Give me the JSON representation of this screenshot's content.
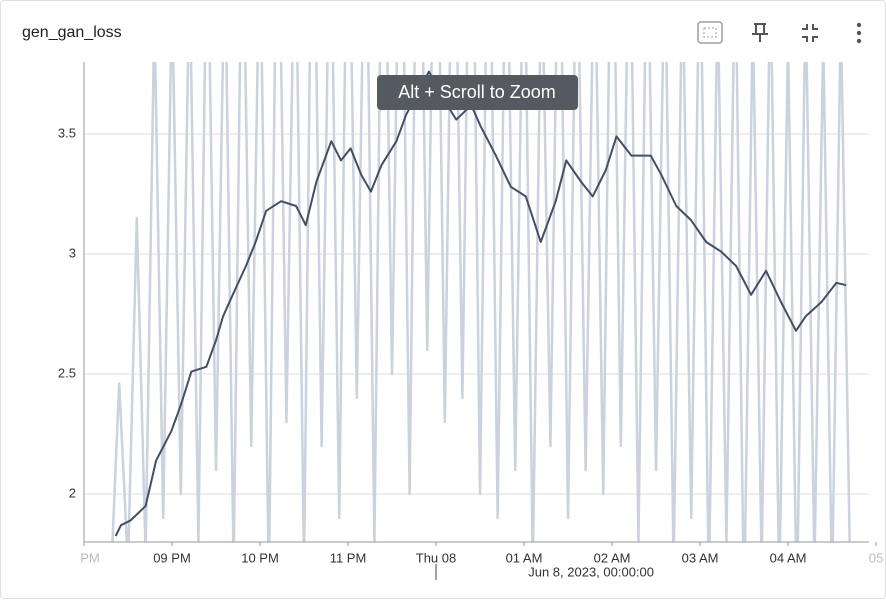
{
  "chart_data": {
    "type": "line",
    "title": "gen_gan_loss",
    "tooltip": "Alt + Scroll to Zoom",
    "x_annotation": {
      "value": 24,
      "label": "Jun 8, 2023, 00:00:00"
    },
    "xlim": [
      20,
      28.92
    ],
    "ylim": [
      1.8,
      3.8
    ],
    "xticks": [
      {
        "value": 20,
        "label": "PM"
      },
      {
        "value": 21,
        "label": "09 PM"
      },
      {
        "value": 22,
        "label": "10 PM"
      },
      {
        "value": 23,
        "label": "11 PM"
      },
      {
        "value": 24,
        "label": "Thu 08"
      },
      {
        "value": 25,
        "label": "01 AM"
      },
      {
        "value": 26,
        "label": "02 AM"
      },
      {
        "value": 27,
        "label": "03 AM"
      },
      {
        "value": 28,
        "label": "04 AM"
      },
      {
        "value": 29,
        "label": "05"
      }
    ],
    "yticks": [
      2,
      2.5,
      3,
      3.5
    ],
    "grid": true,
    "series": [
      {
        "color": "#cbd2dd",
        "x": [
          20.3,
          20.4,
          20.5,
          20.6,
          20.7,
          20.8,
          20.9,
          21.0,
          21.1,
          21.2,
          21.3,
          21.4,
          21.5,
          21.6,
          21.7,
          21.8,
          21.9,
          22.0,
          22.1,
          22.2,
          22.3,
          22.4,
          22.5,
          22.6,
          22.7,
          22.8,
          22.9,
          23.0,
          23.1,
          23.2,
          23.3,
          23.4,
          23.5,
          23.6,
          23.7,
          23.8,
          23.9,
          24.0,
          24.1,
          24.2,
          24.3,
          24.4,
          24.5,
          24.6,
          24.7,
          24.8,
          24.9,
          25.0,
          25.1,
          25.2,
          25.3,
          25.4,
          25.5,
          25.6,
          25.7,
          25.8,
          25.9,
          26.0,
          26.1,
          26.2,
          26.3,
          26.4,
          26.5,
          26.6,
          26.7,
          26.8,
          26.9,
          27.0,
          27.1,
          27.2,
          27.3,
          27.4,
          27.5,
          27.6,
          27.7,
          27.8,
          27.9,
          28.0,
          28.1,
          28.2,
          28.3,
          28.4,
          28.5,
          28.6,
          28.7
        ],
        "values": [
          1.6,
          2.46,
          1.7,
          3.15,
          1.75,
          4.0,
          1.9,
          4.1,
          2.0,
          4.2,
          1.8,
          4.5,
          2.1,
          4.3,
          1.7,
          4.6,
          2.2,
          4.4,
          1.6,
          4.8,
          2.3,
          4.5,
          1.7,
          4.9,
          2.2,
          4.6,
          1.9,
          4.8,
          2.4,
          4.7,
          1.8,
          5.0,
          2.5,
          4.9,
          2.0,
          5.2,
          2.6,
          5.0,
          2.3,
          4.9,
          2.4,
          5.1,
          2.0,
          4.8,
          1.9,
          4.6,
          2.1,
          4.5,
          1.7,
          4.3,
          2.2,
          4.7,
          1.9,
          4.5,
          2.1,
          4.4,
          2.0,
          4.8,
          2.2,
          4.6,
          1.8,
          4.5,
          2.1,
          4.3,
          1.7,
          4.2,
          1.9,
          4.4,
          1.6,
          4.1,
          1.8,
          4.3,
          1.5,
          4.0,
          1.7,
          4.2,
          1.6,
          3.9,
          1.5,
          4.1,
          1.7,
          3.9,
          1.6,
          4.0,
          1.8
        ]
      },
      {
        "color": "#425066",
        "x": [
          20.36,
          20.42,
          20.53,
          20.7,
          20.82,
          20.99,
          21.1,
          21.22,
          21.39,
          21.5,
          21.58,
          21.69,
          21.84,
          21.95,
          22.07,
          22.24,
          22.41,
          22.52,
          22.64,
          22.81,
          22.92,
          23.03,
          23.15,
          23.26,
          23.38,
          23.55,
          23.66,
          23.83,
          23.92,
          24.06,
          24.23,
          24.4,
          24.51,
          24.68,
          24.85,
          25.02,
          25.19,
          25.36,
          25.48,
          25.65,
          25.78,
          25.93,
          26.05,
          26.22,
          26.44,
          26.56,
          26.73,
          26.9,
          27.07,
          27.24,
          27.41,
          27.58,
          27.75,
          27.92,
          28.09,
          28.2,
          28.38,
          28.55,
          28.66
        ],
        "values": [
          1.825,
          1.87,
          1.89,
          1.95,
          2.14,
          2.26,
          2.37,
          2.51,
          2.53,
          2.64,
          2.74,
          2.83,
          2.95,
          3.05,
          3.18,
          3.22,
          3.2,
          3.12,
          3.3,
          3.47,
          3.39,
          3.44,
          3.33,
          3.26,
          3.37,
          3.47,
          3.58,
          3.7,
          3.76,
          3.66,
          3.56,
          3.62,
          3.53,
          3.41,
          3.28,
          3.24,
          3.05,
          3.22,
          3.39,
          3.3,
          3.24,
          3.35,
          3.49,
          3.41,
          3.41,
          3.33,
          3.2,
          3.14,
          3.05,
          3.01,
          2.95,
          2.83,
          2.93,
          2.8,
          2.68,
          2.74,
          2.8,
          2.88,
          2.87
        ]
      }
    ]
  }
}
